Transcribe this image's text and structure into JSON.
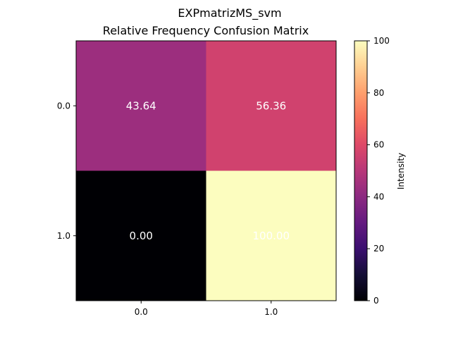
{
  "chart_data": {
    "type": "heatmap",
    "suptitle": "EXPmatrizMS_svm",
    "title": "Relative Frequency Confusion Matrix",
    "row_labels": [
      "0.0",
      "1.0"
    ],
    "col_labels": [
      "0.0",
      "1.0"
    ],
    "values": [
      [
        43.64,
        56.36
      ],
      [
        0.0,
        100.0
      ]
    ],
    "value_labels": [
      [
        "43.64",
        "56.36"
      ],
      [
        "0.00",
        "100.00"
      ]
    ],
    "colormap": "magma",
    "colorbar": {
      "label": "Intensity",
      "range": [
        0,
        100
      ],
      "ticks": [
        "0",
        "20",
        "40",
        "60",
        "80",
        "100"
      ]
    },
    "annotation_color": "#ffffff"
  }
}
